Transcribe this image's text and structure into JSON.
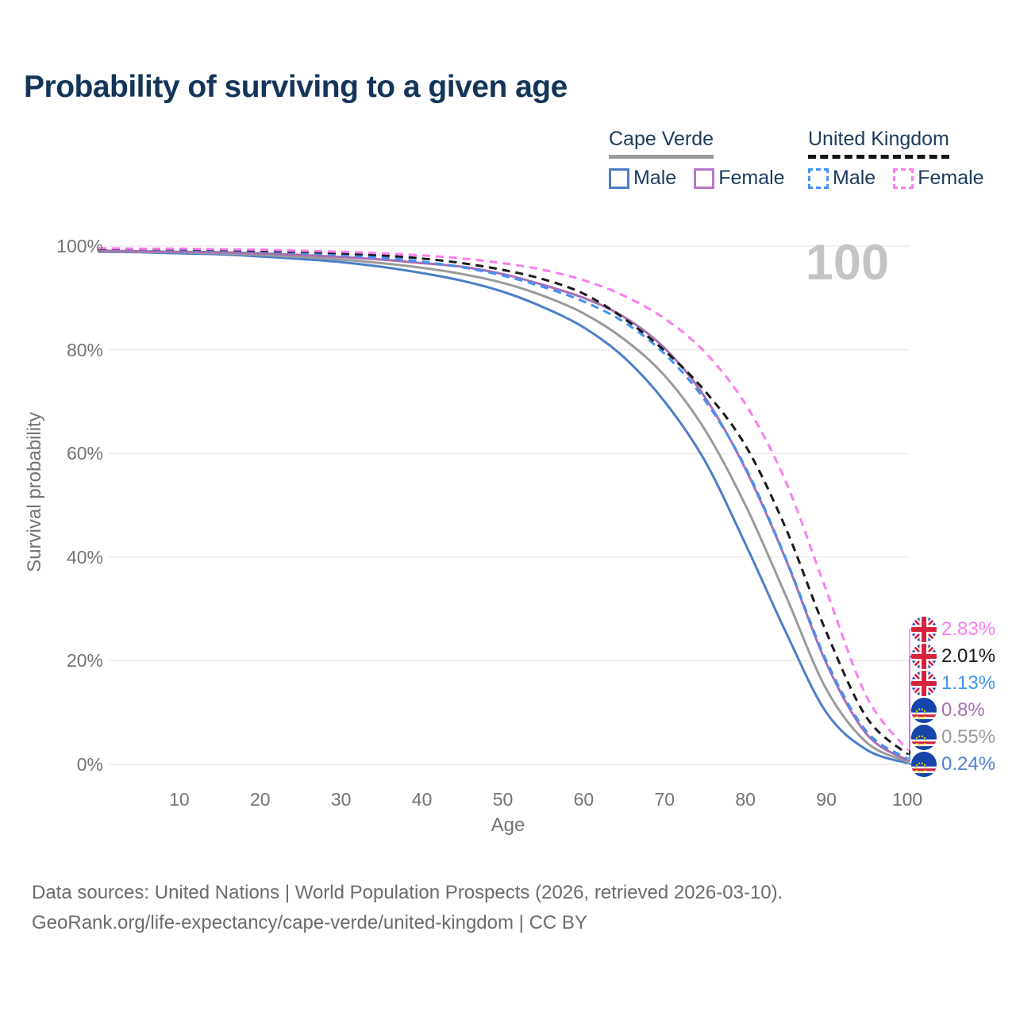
{
  "title": "Probability of surviving to a given age",
  "watermark_label": "100",
  "colors": {
    "title_text": "#14355a",
    "axis_text": "#737373",
    "gridline": "#ebebeb",
    "watermark": "#c4c4c4",
    "source_text": "#6b6b6b",
    "cape_verde_male": "#4b7ec9",
    "cape_verde_total": "#9b9b9b",
    "cape_verde_female": "#a76fb4",
    "uk_male": "#4292f4",
    "uk_total": "#1a1a1a",
    "uk_female": "#fb7def"
  },
  "legend": {
    "groups": [
      {
        "name": "Cape Verde",
        "line_style": "solid",
        "underline_color": "#9b9b9b",
        "items": [
          {
            "label": "Male",
            "color": "#4b7ec9",
            "dashed": false
          },
          {
            "label": "Female",
            "color": "#b678c4",
            "dashed": false
          }
        ]
      },
      {
        "name": "United Kingdom",
        "line_style": "dashed",
        "underline_color": "#141414",
        "items": [
          {
            "label": "Male",
            "color": "#4292f4",
            "dashed": true
          },
          {
            "label": "Female",
            "color": "#fb7def",
            "dashed": true
          }
        ]
      }
    ]
  },
  "y_axis": {
    "title": "Survival probability",
    "ticks": [
      {
        "label": "100%",
        "value": 100
      },
      {
        "label": "80%",
        "value": 80
      },
      {
        "label": "60%",
        "value": 60
      },
      {
        "label": "40%",
        "value": 40
      },
      {
        "label": "20%",
        "value": 20
      },
      {
        "label": "0%",
        "value": 0
      }
    ]
  },
  "x_axis": {
    "title": "Age",
    "ticks": [
      10,
      20,
      30,
      40,
      50,
      60,
      70,
      80,
      90,
      100
    ]
  },
  "chart_data": {
    "type": "line",
    "title": "Probability of surviving to a given age",
    "xlabel": "Age",
    "ylabel": "Survival probability",
    "xlim": [
      0,
      100
    ],
    "ylim": [
      0,
      100
    ],
    "grid": "horizontal",
    "legend_position": "top-right",
    "ages": [
      0,
      5,
      10,
      15,
      20,
      25,
      30,
      35,
      40,
      45,
      50,
      55,
      60,
      65,
      70,
      75,
      80,
      85,
      90,
      95,
      100
    ],
    "series": [
      {
        "id": "cv-male",
        "label": "Cape Verde Male",
        "color": "#4b7ec9",
        "dashed": false,
        "values": [
          98.9,
          98.8,
          98.6,
          98.4,
          98.0,
          97.5,
          96.9,
          96.0,
          94.8,
          93.3,
          91.2,
          88.2,
          84.3,
          78.5,
          70.0,
          58.5,
          42.5,
          25.5,
          10.0,
          2.8,
          0.24
        ],
        "end_label": "0.24%",
        "end_label_color": "#4e7fd4",
        "flag": "cv",
        "label_slot": 5
      },
      {
        "id": "cv-total",
        "label": "Cape Verde",
        "color": "#9b9b9b",
        "dashed": false,
        "values": [
          99.0,
          98.9,
          98.8,
          98.6,
          98.3,
          97.9,
          97.4,
          96.7,
          95.8,
          94.6,
          92.9,
          90.4,
          87.0,
          82.0,
          75.0,
          64.5,
          50.0,
          32.5,
          14.5,
          4.2,
          0.55
        ],
        "end_label": "0.55%",
        "end_label_color": "#9b9b9b",
        "flag": "cv",
        "label_slot": 4
      },
      {
        "id": "cv-female",
        "label": "Cape Verde Female",
        "color": "#a76fb4",
        "dashed": false,
        "values": [
          99.1,
          99.0,
          98.9,
          98.8,
          98.6,
          98.3,
          97.9,
          97.4,
          96.7,
          96.0,
          94.6,
          92.5,
          90.0,
          86.3,
          80.3,
          70.8,
          57.0,
          39.5,
          19.5,
          5.8,
          0.8
        ],
        "end_label": "0.8%",
        "end_label_color": "#a76fb4",
        "flag": "cv",
        "label_slot": 3
      },
      {
        "id": "uk-male",
        "label": "United Kingdom Male",
        "color": "#4292f4",
        "dashed": true,
        "values": [
          99.5,
          99.4,
          99.3,
          99.2,
          99.0,
          98.7,
          98.3,
          97.8,
          97.0,
          95.9,
          94.3,
          92.1,
          89.3,
          85.3,
          79.2,
          70.2,
          57.3,
          39.7,
          20.0,
          6.3,
          1.13
        ],
        "end_label": "1.13%",
        "end_label_color": "#4292f4",
        "flag": "uk",
        "label_slot": 2
      },
      {
        "id": "uk-total",
        "label": "United Kingdom",
        "color": "#1a1a1a",
        "dashed": true,
        "values": [
          99.5,
          99.45,
          99.4,
          99.3,
          99.1,
          98.9,
          98.6,
          98.2,
          97.6,
          96.7,
          95.4,
          93.6,
          90.8,
          86.0,
          79.8,
          72.0,
          61.5,
          45.5,
          25.5,
          9.0,
          2.01
        ],
        "end_label": "2.01%",
        "end_label_color": "#1a1a1a",
        "flag": "uk",
        "label_slot": 1
      },
      {
        "id": "uk-female",
        "label": "United Kingdom Female",
        "color": "#fb7def",
        "dashed": true,
        "values": [
          99.6,
          99.5,
          99.5,
          99.4,
          99.3,
          99.1,
          98.9,
          98.6,
          98.2,
          97.6,
          96.7,
          95.4,
          93.4,
          90.4,
          86.0,
          79.5,
          69.5,
          54.5,
          33.5,
          13.0,
          2.83
        ],
        "end_label": "2.83%",
        "end_label_color": "#fb7def",
        "flag": "uk",
        "label_slot": 0
      }
    ]
  },
  "source_lines": [
    "Data sources: United Nations | World Population Prospects (2026, retrieved 2026-03-10).",
    "GeoRank.org/life-expectancy/cape-verde/united-kingdom | CC BY"
  ]
}
